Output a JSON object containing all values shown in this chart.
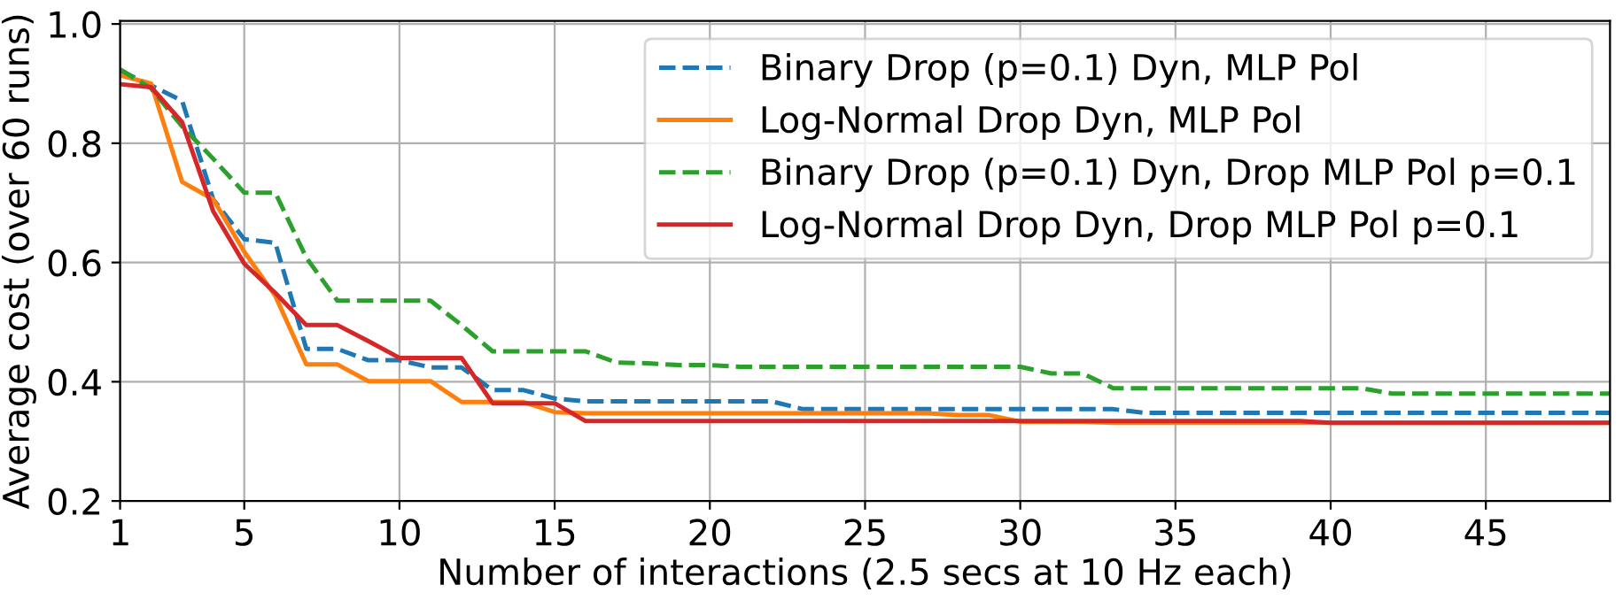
{
  "chart_data": {
    "type": "line",
    "xlabel": "Number of interactions (2.5 secs at 10 Hz each)",
    "ylabel": "Average cost (over 60 runs)",
    "x": [
      1,
      2,
      3,
      4,
      5,
      6,
      7,
      8,
      9,
      10,
      11,
      12,
      13,
      14,
      15,
      16,
      17,
      18,
      19,
      20,
      21,
      22,
      23,
      24,
      25,
      26,
      27,
      28,
      29,
      30,
      31,
      32,
      33,
      34,
      35,
      36,
      37,
      38,
      39,
      40,
      41,
      42,
      43,
      44,
      45,
      46,
      47,
      48,
      49
    ],
    "series": [
      {
        "name": "Binary Drop (p=0.1) Dyn, MLP Pol",
        "color": "#1f77b4",
        "line_style": "dashed",
        "values": [
          0.922,
          0.897,
          0.871,
          0.706,
          0.639,
          0.633,
          0.455,
          0.455,
          0.436,
          0.436,
          0.424,
          0.424,
          0.386,
          0.386,
          0.372,
          0.367,
          0.367,
          0.367,
          0.367,
          0.367,
          0.367,
          0.367,
          0.354,
          0.354,
          0.354,
          0.354,
          0.354,
          0.354,
          0.354,
          0.354,
          0.354,
          0.354,
          0.354,
          0.348,
          0.348,
          0.348,
          0.348,
          0.348,
          0.348,
          0.348,
          0.348,
          0.348,
          0.348,
          0.348,
          0.348,
          0.348,
          0.348,
          0.348,
          0.348
        ]
      },
      {
        "name": "Log-Normal Drop Dyn, MLP Pol",
        "color": "#ff7f0e",
        "line_style": "solid",
        "values": [
          0.914,
          0.9,
          0.735,
          0.706,
          0.618,
          0.544,
          0.429,
          0.429,
          0.401,
          0.401,
          0.401,
          0.366,
          0.366,
          0.366,
          0.349,
          0.347,
          0.347,
          0.347,
          0.347,
          0.347,
          0.347,
          0.347,
          0.347,
          0.347,
          0.347,
          0.347,
          0.347,
          0.344,
          0.344,
          0.333,
          0.333,
          0.333,
          0.331,
          0.331,
          0.331,
          0.331,
          0.331,
          0.331,
          0.331,
          0.331,
          0.331,
          0.331,
          0.331,
          0.331,
          0.331,
          0.331,
          0.331,
          0.331,
          0.331
        ]
      },
      {
        "name": "Binary Drop (p=0.1) Dyn, Drop MLP Pol p=0.1",
        "color": "#2ca02c",
        "line_style": "dashed",
        "values": [
          0.924,
          0.892,
          0.828,
          0.774,
          0.717,
          0.717,
          0.608,
          0.536,
          0.536,
          0.536,
          0.536,
          0.495,
          0.451,
          0.451,
          0.451,
          0.451,
          0.432,
          0.431,
          0.428,
          0.428,
          0.425,
          0.425,
          0.425,
          0.425,
          0.425,
          0.425,
          0.425,
          0.425,
          0.425,
          0.425,
          0.414,
          0.414,
          0.389,
          0.389,
          0.389,
          0.389,
          0.389,
          0.389,
          0.389,
          0.389,
          0.389,
          0.38,
          0.38,
          0.38,
          0.38,
          0.38,
          0.38,
          0.38,
          0.38
        ]
      },
      {
        "name": "Log-Normal Drop Dyn, Drop MLP Pol p=0.1",
        "color": "#d62728",
        "line_style": "solid",
        "values": [
          0.899,
          0.894,
          0.835,
          0.686,
          0.598,
          0.549,
          0.495,
          0.495,
          0.468,
          0.44,
          0.44,
          0.44,
          0.364,
          0.364,
          0.364,
          0.334,
          0.334,
          0.334,
          0.334,
          0.334,
          0.334,
          0.334,
          0.334,
          0.334,
          0.334,
          0.334,
          0.334,
          0.334,
          0.334,
          0.334,
          0.334,
          0.334,
          0.334,
          0.334,
          0.334,
          0.334,
          0.334,
          0.334,
          0.334,
          0.331,
          0.331,
          0.331,
          0.331,
          0.331,
          0.331,
          0.331,
          0.331,
          0.331,
          0.331
        ]
      }
    ],
    "xlim": [
      1,
      49
    ],
    "xticks": [
      1,
      5,
      10,
      15,
      20,
      25,
      30,
      35,
      40,
      45
    ],
    "ylim": [
      0.2,
      1.005
    ],
    "yticks": [
      0.2,
      0.4,
      0.6,
      0.8,
      {
        "value": 1.0,
        "label": "1.0"
      }
    ],
    "grid": true,
    "legend": "top right"
  }
}
